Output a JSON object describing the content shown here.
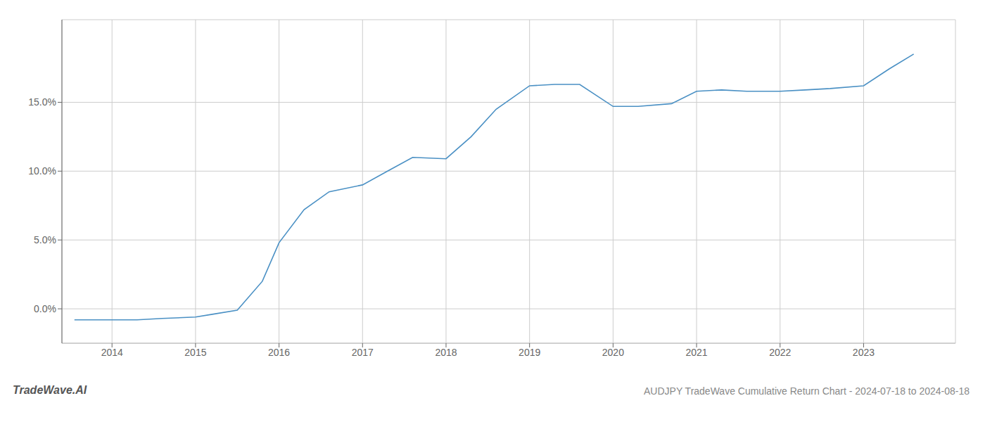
{
  "chart_data": {
    "type": "line",
    "title": "AUDJPY TradeWave Cumulative Return Chart - 2024-07-18 to 2024-08-18",
    "annotations": [
      "TradeWave.AI"
    ],
    "x": [
      2013.55,
      2014.0,
      2014.3,
      2014.6,
      2015.0,
      2015.2,
      2015.5,
      2015.8,
      2016.0,
      2016.3,
      2016.6,
      2017.0,
      2017.3,
      2017.6,
      2018.0,
      2018.3,
      2018.6,
      2019.0,
      2019.3,
      2019.6,
      2020.0,
      2020.3,
      2020.7,
      2021.0,
      2021.3,
      2021.6,
      2022.0,
      2022.3,
      2022.6,
      2023.0,
      2023.3,
      2023.6
    ],
    "values": [
      -0.008,
      -0.008,
      -0.008,
      -0.007,
      -0.006,
      -0.004,
      -0.001,
      0.02,
      0.048,
      0.072,
      0.085,
      0.09,
      0.1,
      0.11,
      0.109,
      0.125,
      0.145,
      0.162,
      0.163,
      0.163,
      0.147,
      0.147,
      0.149,
      0.158,
      0.159,
      0.158,
      0.158,
      0.159,
      0.16,
      0.162,
      0.174,
      0.185
    ],
    "color": "#4a90c4",
    "xlim": [
      2013.4,
      2024.1
    ],
    "xticks": [
      2014,
      2015,
      2016,
      2017,
      2018,
      2019,
      2020,
      2021,
      2022,
      2023
    ],
    "ylim": [
      -0.025,
      0.21
    ],
    "yticks": [
      {
        "value": 0.0,
        "label": "0.0%"
      },
      {
        "value": 0.05,
        "label": "5.0%"
      },
      {
        "value": 0.1,
        "label": "10.0%"
      },
      {
        "value": 0.15,
        "label": "15.0%"
      }
    ],
    "grid": true
  }
}
